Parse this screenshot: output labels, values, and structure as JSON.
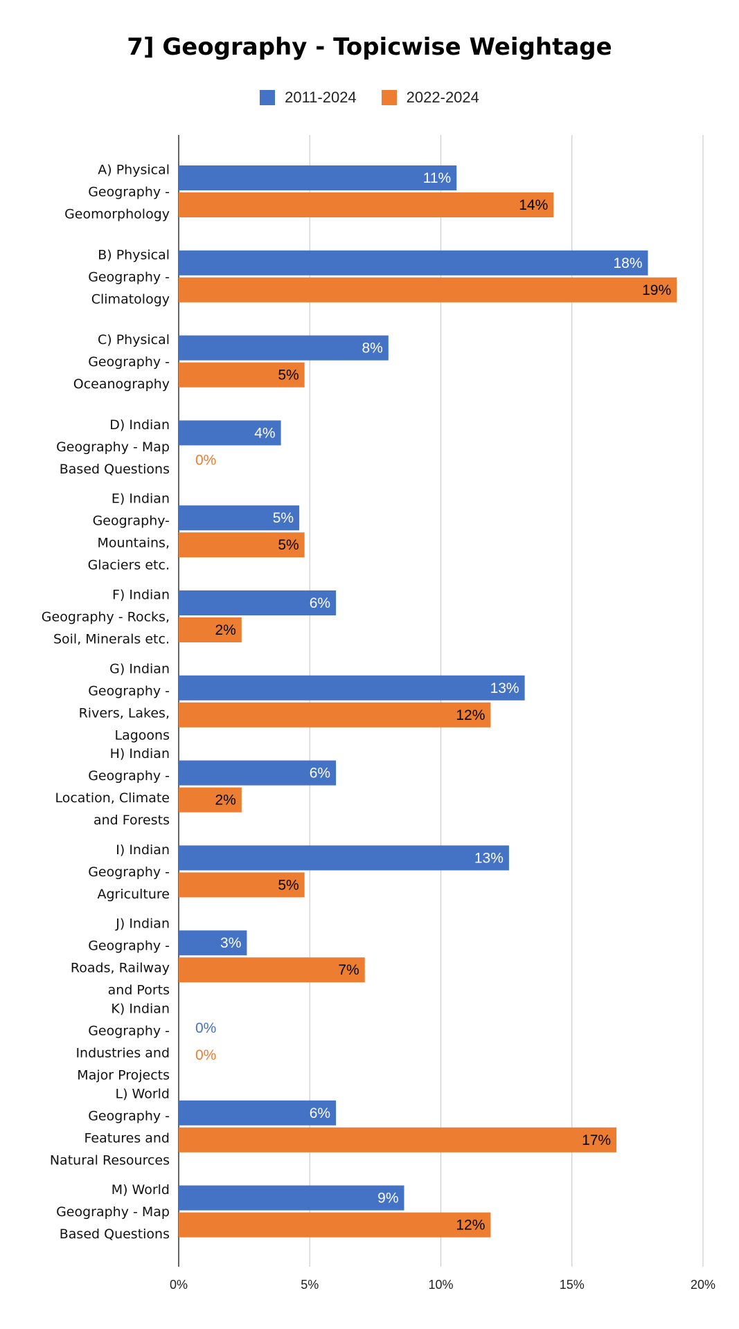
{
  "chart_data": {
    "type": "bar",
    "orientation": "horizontal",
    "title": "7] Geography - Topicwise Weightage",
    "xlabel": "",
    "ylabel": "",
    "xlim": [
      0,
      20
    ],
    "x_ticks": [
      "0%",
      "5%",
      "10%",
      "15%",
      "20%"
    ],
    "grid": true,
    "legend_position": "top-center",
    "categories": [
      [
        "A) Physical",
        "Geography -",
        "Geomorphology"
      ],
      [
        "B) Physical",
        "Geography -",
        "Climatology"
      ],
      [
        "C) Physical",
        "Geography -",
        "Oceanography"
      ],
      [
        "D) Indian",
        "Geography - Map",
        "Based Questions"
      ],
      [
        "E) Indian",
        "Geography-",
        "Mountains,",
        "Glaciers etc."
      ],
      [
        "F) Indian",
        "Geography - Rocks,",
        "Soil, Minerals etc."
      ],
      [
        "G) Indian",
        "Geography -",
        "Rivers, Lakes,",
        "Lagoons"
      ],
      [
        "H) Indian",
        "Geography -",
        "Location, Climate",
        "and Forests"
      ],
      [
        "I) Indian",
        "Geography -",
        "Agriculture"
      ],
      [
        "J) Indian",
        "Geography -",
        "Roads, Railway",
        "and Ports"
      ],
      [
        "K) Indian",
        "Geography -",
        "Industries and",
        "Major Projects"
      ],
      [
        "L) World",
        "Geography -",
        "Features and",
        "Natural Resources"
      ],
      [
        "M) World",
        "Geography - Map",
        "Based Questions"
      ]
    ],
    "series": [
      {
        "name": "2011-2024",
        "color": "#4472C4",
        "values": [
          10.6,
          17.9,
          8.0,
          3.9,
          4.6,
          6.0,
          13.2,
          6.0,
          12.6,
          2.6,
          0,
          6.0,
          8.6
        ],
        "labels": [
          "11%",
          "18%",
          "8%",
          "4%",
          "5%",
          "6%",
          "13%",
          "6%",
          "13%",
          "3%",
          "0%",
          "6%",
          "9%"
        ]
      },
      {
        "name": "2022-2024",
        "color": "#ED7D31",
        "values": [
          14.3,
          19.0,
          4.8,
          0,
          4.8,
          2.4,
          11.9,
          2.4,
          4.8,
          7.1,
          0,
          16.7,
          11.9
        ],
        "labels": [
          "14%",
          "19%",
          "5%",
          "0%",
          "5%",
          "2%",
          "12%",
          "2%",
          "5%",
          "7%",
          "0%",
          "17%",
          "12%"
        ]
      }
    ]
  }
}
